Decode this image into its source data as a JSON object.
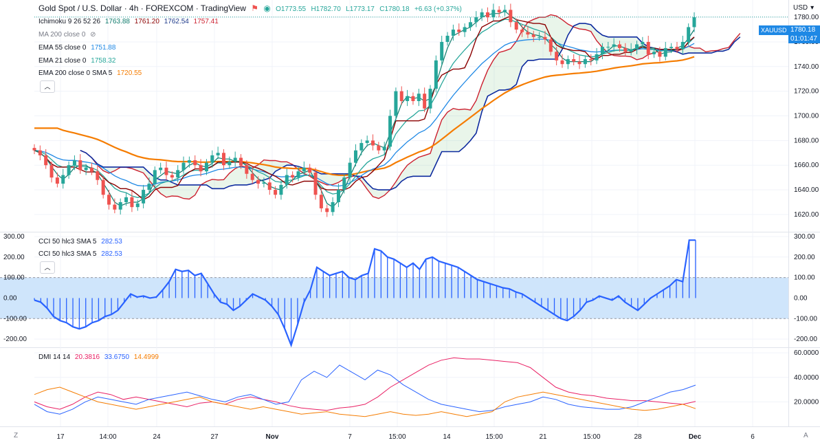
{
  "header": {
    "title": "Gold Spot / U.S. Dollar · 4h · FOREXCOM · TradingView",
    "ohlc": {
      "o": "O1773.55",
      "h": "H1782.70",
      "l": "L1773.17",
      "c": "C1780.18",
      "chg": "+6.63 (+0.37%)"
    },
    "currency": "USD"
  },
  "indicators": {
    "ichimoku": {
      "label": "Ichimoku 9 26 52 26",
      "v1": "1763.88",
      "v2": "1761.20",
      "v3": "1762.54",
      "v4": "1757.41"
    },
    "ma200": {
      "label": "MA 200 close 0"
    },
    "ema55": {
      "label": "EMA 55 close 0",
      "value": "1751.88"
    },
    "ema21": {
      "label": "EMA 21 close 0",
      "value": "1758.32"
    },
    "ema200": {
      "label": "EMA 200 close 0 SMA 5",
      "value": "1720.55"
    },
    "cci1": {
      "label": "CCI 50 hlc3 SMA 5",
      "value": "282.53"
    },
    "cci2": {
      "label": "CCI 50 hlc3 SMA 5",
      "value": "282.53"
    },
    "dmi": {
      "label": "DMI 14 14",
      "v1": "20.3816",
      "v2": "33.6750",
      "v3": "14.4999"
    }
  },
  "price_tags": {
    "symbol": "XAUUSD",
    "price": "1780.18",
    "countdown": "01:01:47"
  },
  "colors": {
    "up": "#26a69a",
    "down": "#ef5350",
    "tenkan": "#0f7b6c",
    "kijun": "#8b0000",
    "ema55": "#1e88e5",
    "ema21": "#26a69a",
    "ema200": "#f57c00",
    "spanA": "#cc1f2e",
    "spanB": "#0d2a9e",
    "cci": "#2962ff",
    "dmi_plus": "#2962ff",
    "dmi_minus": "#f57c00",
    "adx": "#e91e63"
  },
  "chart_data": [
    {
      "type": "candlestick",
      "title": "Gold Spot / U.S. Dollar · 4h · FOREXCOM · TradingView",
      "ylim": [
        1606,
        1794
      ],
      "yticks": [
        "1620.00",
        "1640.00",
        "1660.00",
        "1680.00",
        "1700.00",
        "1720.00",
        "1740.00",
        "1760.00",
        "1780.00"
      ],
      "xticks": [
        "17",
        "14:00",
        "24",
        "27",
        "Nov",
        "7",
        "15:00",
        "14",
        "15:00",
        "21",
        "15:00",
        "28",
        "Dec",
        "6"
      ],
      "close": [
        1672,
        1668,
        1660,
        1650,
        1645,
        1652,
        1660,
        1664,
        1656,
        1658,
        1655,
        1648,
        1636,
        1628,
        1624,
        1630,
        1634,
        1626,
        1629,
        1640,
        1645,
        1656,
        1658,
        1652,
        1650,
        1656,
        1662,
        1664,
        1660,
        1655,
        1662,
        1668,
        1670,
        1660,
        1663,
        1666,
        1660,
        1653,
        1648,
        1645,
        1646,
        1640,
        1636,
        1644,
        1652,
        1650,
        1655,
        1658,
        1654,
        1636,
        1625,
        1622,
        1630,
        1640,
        1650,
        1662,
        1672,
        1678,
        1680,
        1676,
        1672,
        1675,
        1700,
        1720,
        1712,
        1716,
        1712,
        1718,
        1706,
        1722,
        1745,
        1760,
        1765,
        1770,
        1768,
        1772,
        1776,
        1780,
        1784,
        1780,
        1786,
        1784,
        1786,
        1776,
        1770,
        1768,
        1766,
        1764,
        1764,
        1762,
        1752,
        1745,
        1742,
        1746,
        1744,
        1742,
        1746,
        1745,
        1750,
        1756,
        1756,
        1758,
        1755,
        1752,
        1754,
        1758,
        1760,
        1750,
        1752,
        1748,
        1755,
        1756,
        1754,
        1760,
        1772,
        1780
      ],
      "ichimoku": {
        "tenkan": "1763.88",
        "kijun": "1761.20",
        "span_a": "1762.54",
        "span_b": "1757.41"
      },
      "ema55_last": 1751.88,
      "ema21_last": 1758.32,
      "ema200_last": 1720.55
    },
    {
      "type": "line",
      "title": "CCI 50 hlc3 SMA 5",
      "ylim": [
        -240,
        320
      ],
      "yticks": [
        "300.00",
        "200.00",
        "100.00",
        "0.00",
        "-100.00",
        "-200.00"
      ],
      "band": [
        -100,
        100
      ],
      "values": [
        -10,
        -20,
        -50,
        -90,
        -110,
        -120,
        -140,
        -150,
        -140,
        -120,
        -110,
        -90,
        -80,
        -60,
        -20,
        20,
        5,
        10,
        0,
        5,
        40,
        80,
        140,
        130,
        135,
        110,
        120,
        70,
        20,
        -20,
        -30,
        -60,
        -40,
        -10,
        20,
        5,
        -10,
        -40,
        -80,
        -150,
        -230,
        -130,
        -20,
        40,
        150,
        130,
        110,
        120,
        130,
        100,
        90,
        110,
        120,
        240,
        230,
        200,
        190,
        170,
        150,
        170,
        140,
        190,
        200,
        180,
        170,
        160,
        150,
        130,
        110,
        90,
        80,
        70,
        60,
        50,
        45,
        30,
        20,
        0,
        -20,
        -40,
        -60,
        -80,
        -100,
        -110,
        -90,
        -60,
        -20,
        -10,
        10,
        0,
        -10,
        10,
        -20,
        -40,
        -60,
        -30,
        0,
        20,
        40,
        60,
        90,
        80,
        282.53,
        282.53
      ],
      "last": 282.53
    },
    {
      "type": "line",
      "title": "DMI 14 14",
      "ylim": [
        0,
        64
      ],
      "yticks": [
        "60.0000",
        "40.0000",
        "20.0000"
      ],
      "series": [
        {
          "name": "",
          "values": [
            20,
            16,
            14,
            18,
            24,
            28,
            26,
            22,
            24,
            22,
            20,
            18,
            16,
            19,
            20,
            18,
            22,
            24,
            22,
            20,
            17,
            15,
            14,
            13,
            15,
            16,
            18,
            24,
            32,
            38,
            44,
            50,
            54,
            56,
            55,
            55,
            54,
            53,
            52,
            48,
            40,
            32,
            28,
            26,
            25,
            23,
            22,
            21,
            21,
            20,
            19,
            18,
            20.38
          ]
        },
        {
          "name": "",
          "values": [
            18,
            12,
            10,
            14,
            20,
            24,
            22,
            20,
            18,
            22,
            24,
            26,
            28,
            25,
            22,
            20,
            24,
            26,
            22,
            18,
            20,
            38,
            45,
            40,
            50,
            44,
            38,
            46,
            42,
            34,
            28,
            22,
            18,
            16,
            14,
            12,
            13,
            16,
            18,
            20,
            24,
            22,
            18,
            16,
            15,
            14,
            14,
            16,
            20,
            24,
            28,
            30,
            33.675
          ]
        },
        {
          "name": "",
          "values": [
            26,
            30,
            32,
            28,
            24,
            20,
            18,
            16,
            14,
            16,
            18,
            20,
            22,
            24,
            20,
            18,
            16,
            14,
            16,
            14,
            12,
            10,
            11,
            12,
            10,
            9,
            8,
            10,
            12,
            10,
            9,
            10,
            12,
            10,
            8,
            10,
            12,
            20,
            24,
            26,
            28,
            26,
            24,
            22,
            20,
            18,
            16,
            14,
            13,
            14,
            16,
            18,
            14.4999
          ]
        }
      ],
      "values_last": [
        "20.3816",
        "33.6750",
        "14.4999"
      ]
    }
  ]
}
